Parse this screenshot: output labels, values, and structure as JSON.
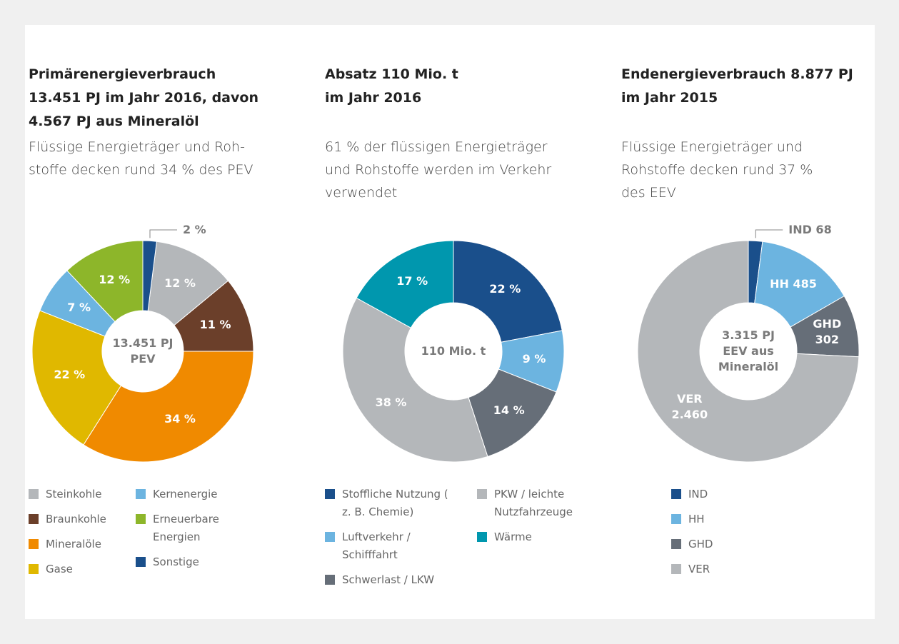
{
  "chart_data": [
    {
      "type": "donut",
      "title": "Primärenergieverbrauch\n13.451 PJ im Jahr 2016, davon\n4.567 PJ aus Mineralöl",
      "subtitle": "Flüssige Energieträger und Roh-\nstoffe decken rund 34 % des PEV",
      "center_label": "13.451 PJ\nPEV",
      "categories": [
        "Steinkohle",
        "Braunkohle",
        "Mineralöle",
        "Gase",
        "Kernenergie",
        "Erneuerbare Energien",
        "Sonstige"
      ],
      "values": [
        12,
        11,
        34,
        22,
        7,
        12,
        2
      ],
      "value_labels": [
        "12 %",
        "11 %",
        "34 %",
        "22 %",
        "7 %",
        "12 %",
        "2 %"
      ],
      "colors": [
        "#b4b7ba",
        "#6b3f2a",
        "#f08a00",
        "#e0b800",
        "#6cb4e0",
        "#8db62a",
        "#1a4f8b"
      ]
    },
    {
      "type": "donut",
      "title": "Absatz 110 Mio. t\nim Jahr 2016",
      "subtitle": "61 % der flüssigen Energieträger\nund Rohstoffe werden im Verkehr\nverwendet",
      "center_label": "110 Mio. t",
      "categories": [
        "Stoffliche Nutzung ( z. B. Chemie)",
        "Luftverkehr / Schifffahrt",
        "Schwerlast / LKW",
        "PKW / leichte Nutzfahrzeuge",
        "Wärme"
      ],
      "values": [
        22,
        9,
        14,
        38,
        17
      ],
      "value_labels": [
        "22 %",
        "9 %",
        "14 %",
        "38 %",
        "17 %"
      ],
      "colors": [
        "#1a4f8b",
        "#6cb4e0",
        "#666e78",
        "#b4b7ba",
        "#0097ae"
      ]
    },
    {
      "type": "donut",
      "title": "Endenergieverbrauch 8.877 PJ\nim Jahr 2015",
      "subtitle": "Flüssige Energieträger und\nRohstoffe decken rund 37 %\ndes EEV",
      "center_label": "3.315 PJ\nEEV aus\nMineralöl",
      "categories": [
        "IND",
        "HH",
        "GHD",
        "VER"
      ],
      "values": [
        68,
        485,
        302,
        2460
      ],
      "value_labels": [
        "IND 68",
        "HH 485",
        "GHD\n302",
        "VER\n2.460"
      ],
      "colors": [
        "#1a4f8b",
        "#6cb4e0",
        "#666e78",
        "#b4b7ba"
      ]
    }
  ]
}
